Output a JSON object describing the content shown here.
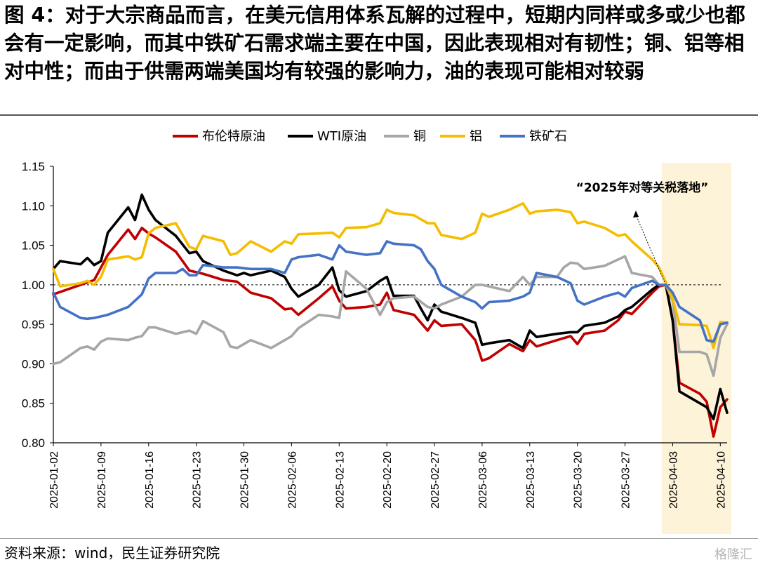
{
  "figure": {
    "title": "图 4：对于大宗商品而言，在美元信用体系瓦解的过程中，短期内同样或多或少也都会有一定影响，而其中铁矿石需求端主要在中国，因此表现相对有韧性；铜、铝等相对中性；而由于供需两端美国均有较强的影响力，油的表现可能相对较弱",
    "source": "资料来源：wind，民生证券研究院",
    "watermark": "格隆汇"
  },
  "chart_data": {
    "type": "line",
    "ylim": [
      0.8,
      1.15
    ],
    "yticks": [
      "0.80",
      "0.85",
      "0.90",
      "0.95",
      "1.00",
      "1.05",
      "1.10",
      "1.15"
    ],
    "x_start": "2025-01-02",
    "x_end": "2025-04-11",
    "xticks": [
      "2025-01-02",
      "2025-01-09",
      "2025-01-16",
      "2025-01-23",
      "2025-01-30",
      "2025-02-06",
      "2025-02-13",
      "2025-02-20",
      "2025-02-27",
      "2025-03-06",
      "2025-03-13",
      "2025-03-20",
      "2025-03-27",
      "2025-04-03",
      "2025-04-10"
    ],
    "reference_line": 1.0,
    "legend_position": "top",
    "highlight": {
      "from": "2025-04-02",
      "to": "2025-04-11",
      "color": "#fdf3d9"
    },
    "annotation": {
      "text": "“2025年对等关税落地”",
      "date": "2025-04-02",
      "value": 1.0
    },
    "series": [
      {
        "name": "布伦特原油",
        "color": "#c00000",
        "x": [
          "2025-01-02",
          "2025-01-06",
          "2025-01-08",
          "2025-01-10",
          "2025-01-13",
          "2025-01-14",
          "2025-01-15",
          "2025-01-16",
          "2025-01-17",
          "2025-01-20",
          "2025-01-22",
          "2025-01-24",
          "2025-01-27",
          "2025-01-29",
          "2025-01-31",
          "2025-02-03",
          "2025-02-05",
          "2025-02-06",
          "2025-02-07",
          "2025-02-10",
          "2025-02-12",
          "2025-02-13",
          "2025-02-14",
          "2025-02-17",
          "2025-02-19",
          "2025-02-20",
          "2025-02-21",
          "2025-02-24",
          "2025-02-26",
          "2025-02-27",
          "2025-02-28",
          "2025-03-03",
          "2025-03-05",
          "2025-03-06",
          "2025-03-07",
          "2025-03-10",
          "2025-03-12",
          "2025-03-13",
          "2025-03-14",
          "2025-03-17",
          "2025-03-19",
          "2025-03-20",
          "2025-03-21",
          "2025-03-24",
          "2025-03-26",
          "2025-03-27",
          "2025-03-28",
          "2025-03-31",
          "2025-04-01",
          "2025-04-02",
          "2025-04-03",
          "2025-04-04",
          "2025-04-07",
          "2025-04-08",
          "2025-04-09",
          "2025-04-10",
          "2025-04-11"
        ],
        "values": [
          0.988,
          1.0,
          1.006,
          1.038,
          1.07,
          1.058,
          1.072,
          1.065,
          1.06,
          1.042,
          1.018,
          1.014,
          1.006,
          1.004,
          0.99,
          0.983,
          0.969,
          0.97,
          0.962,
          0.983,
          0.998,
          0.98,
          0.97,
          0.972,
          0.975,
          0.99,
          0.968,
          0.962,
          0.942,
          0.955,
          0.948,
          0.95,
          0.93,
          0.904,
          0.907,
          0.925,
          0.916,
          0.93,
          0.922,
          0.93,
          0.935,
          0.925,
          0.938,
          0.942,
          0.955,
          0.966,
          0.963,
          0.99,
          0.998,
          1.0,
          0.955,
          0.876,
          0.862,
          0.852,
          0.808,
          0.845,
          0.855
        ]
      },
      {
        "name": "WTI原油",
        "color": "#000000",
        "x": [
          "2025-01-02",
          "2025-01-03",
          "2025-01-06",
          "2025-01-07",
          "2025-01-08",
          "2025-01-09",
          "2025-01-10",
          "2025-01-13",
          "2025-01-14",
          "2025-01-15",
          "2025-01-16",
          "2025-01-17",
          "2025-01-20",
          "2025-01-22",
          "2025-01-23",
          "2025-01-24",
          "2025-01-27",
          "2025-01-29",
          "2025-01-30",
          "2025-01-31",
          "2025-02-03",
          "2025-02-05",
          "2025-02-06",
          "2025-02-07",
          "2025-02-10",
          "2025-02-12",
          "2025-02-13",
          "2025-02-14",
          "2025-02-17",
          "2025-02-19",
          "2025-02-20",
          "2025-02-21",
          "2025-02-24",
          "2025-02-25",
          "2025-02-26",
          "2025-02-27",
          "2025-02-28",
          "2025-03-03",
          "2025-03-05",
          "2025-03-06",
          "2025-03-07",
          "2025-03-10",
          "2025-03-12",
          "2025-03-13",
          "2025-03-14",
          "2025-03-17",
          "2025-03-19",
          "2025-03-20",
          "2025-03-21",
          "2025-03-24",
          "2025-03-26",
          "2025-03-27",
          "2025-03-28",
          "2025-03-31",
          "2025-04-01",
          "2025-04-02",
          "2025-04-03",
          "2025-04-04",
          "2025-04-07",
          "2025-04-08",
          "2025-04-09",
          "2025-04-10",
          "2025-04-11"
        ],
        "values": [
          1.02,
          1.03,
          1.026,
          1.034,
          1.025,
          1.03,
          1.066,
          1.098,
          1.082,
          1.114,
          1.095,
          1.082,
          1.062,
          1.04,
          1.042,
          1.03,
          1.018,
          1.012,
          1.015,
          1.012,
          1.018,
          1.01,
          0.995,
          0.985,
          1.0,
          1.022,
          0.993,
          0.985,
          0.992,
          1.005,
          1.01,
          0.986,
          0.986,
          0.97,
          0.955,
          0.975,
          0.966,
          0.958,
          0.952,
          0.924,
          0.926,
          0.93,
          0.92,
          0.942,
          0.934,
          0.938,
          0.94,
          0.94,
          0.948,
          0.952,
          0.96,
          0.968,
          0.972,
          0.994,
          1.0,
          1.0,
          0.955,
          0.865,
          0.85,
          0.845,
          0.83,
          0.868,
          0.838
        ]
      },
      {
        "name": "铜",
        "color": "#a6a6a6",
        "x": [
          "2025-01-02",
          "2025-01-03",
          "2025-01-06",
          "2025-01-07",
          "2025-01-08",
          "2025-01-09",
          "2025-01-10",
          "2025-01-13",
          "2025-01-14",
          "2025-01-15",
          "2025-01-16",
          "2025-01-17",
          "2025-01-20",
          "2025-01-22",
          "2025-01-23",
          "2025-01-24",
          "2025-01-27",
          "2025-01-28",
          "2025-01-29",
          "2025-01-31",
          "2025-02-03",
          "2025-02-05",
          "2025-02-06",
          "2025-02-07",
          "2025-02-10",
          "2025-02-12",
          "2025-02-13",
          "2025-02-14",
          "2025-02-17",
          "2025-02-19",
          "2025-02-20",
          "2025-02-21",
          "2025-02-24",
          "2025-02-26",
          "2025-02-27",
          "2025-02-28",
          "2025-03-03",
          "2025-03-05",
          "2025-03-06",
          "2025-03-07",
          "2025-03-10",
          "2025-03-12",
          "2025-03-13",
          "2025-03-14",
          "2025-03-17",
          "2025-03-18",
          "2025-03-19",
          "2025-03-20",
          "2025-03-21",
          "2025-03-24",
          "2025-03-26",
          "2025-03-27",
          "2025-03-28",
          "2025-03-31",
          "2025-04-01",
          "2025-04-02",
          "2025-04-03",
          "2025-04-04",
          "2025-04-07",
          "2025-04-08",
          "2025-04-09",
          "2025-04-10",
          "2025-04-11"
        ],
        "values": [
          0.9,
          0.902,
          0.92,
          0.922,
          0.918,
          0.928,
          0.932,
          0.93,
          0.933,
          0.935,
          0.946,
          0.946,
          0.938,
          0.942,
          0.938,
          0.954,
          0.94,
          0.922,
          0.92,
          0.93,
          0.92,
          0.93,
          0.935,
          0.945,
          0.962,
          0.96,
          0.958,
          1.017,
          0.995,
          0.962,
          0.978,
          0.983,
          0.985,
          0.972,
          0.97,
          0.975,
          0.985,
          1.0,
          1.0,
          0.998,
          0.992,
          1.01,
          1.0,
          1.01,
          1.01,
          1.022,
          1.028,
          1.027,
          1.02,
          1.024,
          1.032,
          1.036,
          1.015,
          1.01,
          1.0,
          1.0,
          0.98,
          0.915,
          0.915,
          0.912,
          0.885,
          0.933,
          0.95
        ]
      },
      {
        "name": "铝",
        "color": "#f5bd00",
        "x": [
          "2025-01-02",
          "2025-01-03",
          "2025-01-06",
          "2025-01-07",
          "2025-01-08",
          "2025-01-09",
          "2025-01-10",
          "2025-01-13",
          "2025-01-14",
          "2025-01-15",
          "2025-01-16",
          "2025-01-17",
          "2025-01-20",
          "2025-01-22",
          "2025-01-23",
          "2025-01-24",
          "2025-01-27",
          "2025-01-28",
          "2025-01-29",
          "2025-01-31",
          "2025-02-03",
          "2025-02-05",
          "2025-02-06",
          "2025-02-07",
          "2025-02-10",
          "2025-02-12",
          "2025-02-13",
          "2025-02-14",
          "2025-02-17",
          "2025-02-19",
          "2025-02-20",
          "2025-02-21",
          "2025-02-24",
          "2025-02-26",
          "2025-02-27",
          "2025-02-28",
          "2025-03-03",
          "2025-03-05",
          "2025-03-06",
          "2025-03-07",
          "2025-03-10",
          "2025-03-12",
          "2025-03-13",
          "2025-03-14",
          "2025-03-17",
          "2025-03-19",
          "2025-03-20",
          "2025-03-21",
          "2025-03-24",
          "2025-03-26",
          "2025-03-27",
          "2025-03-28",
          "2025-03-31",
          "2025-04-01",
          "2025-04-02",
          "2025-04-03",
          "2025-04-04",
          "2025-04-07",
          "2025-04-08",
          "2025-04-09",
          "2025-04-10",
          "2025-04-11"
        ],
        "values": [
          1.02,
          0.998,
          1.002,
          1.005,
          1.0,
          1.01,
          1.032,
          1.036,
          1.032,
          1.035,
          1.065,
          1.072,
          1.078,
          1.048,
          1.045,
          1.062,
          1.055,
          1.038,
          1.04,
          1.055,
          1.042,
          1.055,
          1.052,
          1.064,
          1.065,
          1.066,
          1.06,
          1.072,
          1.073,
          1.078,
          1.095,
          1.091,
          1.088,
          1.078,
          1.078,
          1.063,
          1.058,
          1.066,
          1.09,
          1.086,
          1.095,
          1.103,
          1.09,
          1.093,
          1.095,
          1.092,
          1.078,
          1.08,
          1.072,
          1.062,
          1.064,
          1.055,
          1.032,
          1.022,
          1.003,
          0.982,
          0.95,
          0.949,
          0.948,
          0.92,
          0.953,
          0.952
        ]
      },
      {
        "name": "铁矿石",
        "color": "#4472c4",
        "x": [
          "2025-01-02",
          "2025-01-03",
          "2025-01-06",
          "2025-01-07",
          "2025-01-08",
          "2025-01-09",
          "2025-01-10",
          "2025-01-13",
          "2025-01-14",
          "2025-01-15",
          "2025-01-16",
          "2025-01-17",
          "2025-01-20",
          "2025-01-21",
          "2025-01-22",
          "2025-01-23",
          "2025-01-24",
          "2025-01-27",
          "2025-01-29",
          "2025-01-31",
          "2025-02-03",
          "2025-02-05",
          "2025-02-06",
          "2025-02-07",
          "2025-02-10",
          "2025-02-12",
          "2025-02-13",
          "2025-02-14",
          "2025-02-17",
          "2025-02-19",
          "2025-02-20",
          "2025-02-21",
          "2025-02-24",
          "2025-02-25",
          "2025-02-26",
          "2025-02-27",
          "2025-02-28",
          "2025-03-03",
          "2025-03-05",
          "2025-03-06",
          "2025-03-07",
          "2025-03-10",
          "2025-03-12",
          "2025-03-13",
          "2025-03-14",
          "2025-03-17",
          "2025-03-19",
          "2025-03-20",
          "2025-03-21",
          "2025-03-24",
          "2025-03-26",
          "2025-03-27",
          "2025-03-28",
          "2025-03-31",
          "2025-04-01",
          "2025-04-02",
          "2025-04-03",
          "2025-04-04",
          "2025-04-07",
          "2025-04-08",
          "2025-04-09",
          "2025-04-10",
          "2025-04-11"
        ],
        "values": [
          0.99,
          0.972,
          0.958,
          0.957,
          0.958,
          0.96,
          0.962,
          0.972,
          0.98,
          0.988,
          1.008,
          1.015,
          1.015,
          1.02,
          1.012,
          1.012,
          1.025,
          1.022,
          1.022,
          1.02,
          1.02,
          1.015,
          1.032,
          1.035,
          1.038,
          1.032,
          1.05,
          1.042,
          1.038,
          1.04,
          1.055,
          1.052,
          1.05,
          1.045,
          1.03,
          1.02,
          1.0,
          0.985,
          0.978,
          0.97,
          0.978,
          0.98,
          0.985,
          0.99,
          1.015,
          1.01,
          1.002,
          0.98,
          0.975,
          0.985,
          0.99,
          0.985,
          0.996,
          1.005,
          1.0,
          1.0,
          0.99,
          0.972,
          0.955,
          0.93,
          0.928,
          0.95,
          0.952
        ]
      }
    ]
  }
}
